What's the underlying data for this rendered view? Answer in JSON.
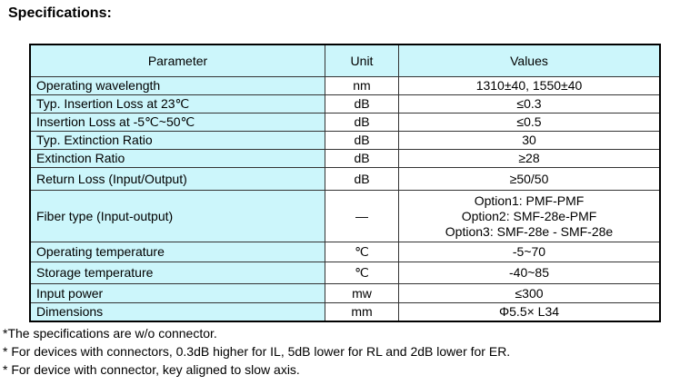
{
  "title": "Specifications:",
  "table": {
    "headers": [
      "Parameter",
      "Unit",
      "Values"
    ],
    "rows": [
      {
        "parameter": "Operating wavelength",
        "unit": "nm",
        "values": [
          "1310±40, 1550±40"
        ]
      },
      {
        "parameter": "Typ. Insertion Loss at 23℃",
        "unit": "dB",
        "values": [
          "≤0.3"
        ]
      },
      {
        "parameter": "Insertion Loss at -5℃~50℃",
        "unit": "dB",
        "values": [
          "≤0.5"
        ]
      },
      {
        "parameter": "Typ. Extinction Ratio",
        "unit": "dB",
        "values": [
          "30"
        ]
      },
      {
        "parameter": "Extinction Ratio",
        "unit": "dB",
        "values": [
          "≥28"
        ]
      },
      {
        "parameter": "Return Loss (Input/Output)",
        "unit": "dB",
        "values": [
          "≥50/50"
        ]
      },
      {
        "parameter": "Fiber type (Input-output)",
        "unit": "—",
        "values": [
          "Option1: PMF-PMF",
          "Option2: SMF-28e-PMF",
          "Option3: SMF-28e - SMF-28e"
        ]
      },
      {
        "parameter": "Operating temperature",
        "unit": "℃",
        "values": [
          "-5~70"
        ]
      },
      {
        "parameter": "Storage temperature",
        "unit": "℃",
        "values": [
          "-40~85"
        ]
      },
      {
        "parameter": "Input power",
        "unit": "mw",
        "values": [
          "≤300"
        ]
      },
      {
        "parameter": "Dimensions",
        "unit": "mm",
        "values": [
          "Φ5.5× L34"
        ]
      }
    ]
  },
  "notes": [
    "*The specifications are w/o connector.",
    "* For devices with connectors, 0.3dB higher for IL, 5dB lower for RL and 2dB lower for ER.",
    "* For device with connector, key aligned to slow axis."
  ],
  "colors": {
    "header_bg": "#ccf6fb",
    "parameter_bg": "#ccf6fb"
  }
}
